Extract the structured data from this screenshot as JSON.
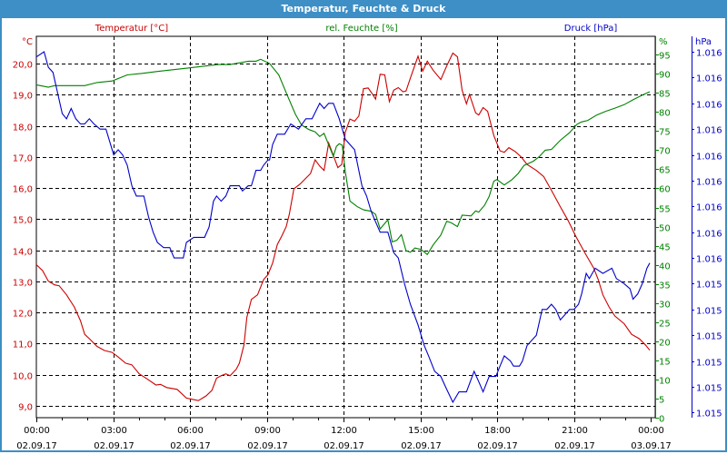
{
  "window": {
    "title": "Temperatur, Feuchte & Druck"
  },
  "colors": {
    "temperature": "#cc0000",
    "humidity": "#008000",
    "pressure": "#0000cc",
    "titlebar": "#3d8fc6"
  },
  "chart_data": {
    "type": "line",
    "title": "Temperatur, Feuchte & Druck",
    "x_unit": "hours since 02.09.17 00:00",
    "xlim": [
      0,
      24.17
    ],
    "x_ticks": [
      {
        "h": 0,
        "time": "00:00",
        "date": "02.09.17"
      },
      {
        "h": 3,
        "time": "03:00",
        "date": "02.09.17"
      },
      {
        "h": 6,
        "time": "06:00",
        "date": "02.09.17"
      },
      {
        "h": 9,
        "time": "09:00",
        "date": "02.09.17"
      },
      {
        "h": 12,
        "time": "12:00",
        "date": "02.09.17"
      },
      {
        "h": 15,
        "time": "15:00",
        "date": "02.09.17"
      },
      {
        "h": 18,
        "time": "18:00",
        "date": "02.09.17"
      },
      {
        "h": 21,
        "time": "21:00",
        "date": "02.09.17"
      },
      {
        "h": 24,
        "time": "00:00",
        "date": "03.09.17"
      }
    ],
    "grid": true,
    "axes": {
      "temperature": {
        "legend": "Temperatur [°C]",
        "unit": "°C",
        "ylim": [
          8.62,
          20.88
        ],
        "ticks": [
          9,
          10,
          11,
          12,
          13,
          14,
          15,
          16,
          17,
          18,
          19,
          20
        ],
        "tick_labels": [
          "9,0",
          "10,0",
          "11,0",
          "12,0",
          "13,0",
          "14,0",
          "15,0",
          "16,0",
          "17,0",
          "18,0",
          "19,0",
          "20,0"
        ]
      },
      "humidity": {
        "legend": "rel. Feuchte [%]",
        "unit": "%",
        "ylim": [
          0,
          99.8
        ],
        "ticks": [
          0,
          5,
          10,
          15,
          20,
          25,
          30,
          35,
          40,
          45,
          50,
          55,
          60,
          65,
          70,
          75,
          80,
          85,
          90,
          95
        ],
        "tick_labels": [
          "0",
          "5",
          "10",
          "15",
          "20",
          "25",
          "30",
          "35",
          "40",
          "45",
          "50",
          "55",
          "60",
          "65",
          "70",
          "75",
          "80",
          "85",
          "90",
          "95"
        ]
      },
      "pressure": {
        "legend": "Druck [hPa]",
        "unit": "hPa",
        "ylim": [
          1.01529,
          1.01603
        ],
        "ticks": [
          1.0153,
          1.01535,
          1.0154,
          1.01545,
          1.0155,
          1.01555,
          1.0156,
          1.01565,
          1.0157,
          1.01575,
          1.0158,
          1.01585,
          1.0159,
          1.01595,
          1.016
        ],
        "tick_labels": [
          "1.015",
          "1.015",
          "1.015",
          "1.015",
          "1.015",
          "1.015",
          "1.016",
          "1.016",
          "1.016",
          "1.016",
          "1.016",
          "1.016",
          "1.016",
          "1.016",
          "1.016"
        ]
      }
    },
    "series": [
      {
        "name": "Temperatur [°C]",
        "axis": "temperature",
        "x": [
          0,
          0.24,
          0.47,
          0.71,
          0.89,
          1.18,
          1.48,
          1.72,
          1.89,
          2.07,
          2.37,
          2.66,
          2.96,
          3.2,
          3.49,
          3.73,
          4.02,
          4.32,
          4.67,
          4.85,
          5.09,
          5.5,
          5.86,
          6.04,
          6.33,
          6.63,
          6.86,
          7.04,
          7.22,
          7.4,
          7.57,
          7.81,
          7.93,
          8.11,
          8.22,
          8.4,
          8.64,
          8.88,
          9.05,
          9.23,
          9.41,
          9.59,
          9.76,
          9.88,
          10.06,
          10.3,
          10.53,
          10.71,
          10.89,
          11.07,
          11.24,
          11.42,
          11.6,
          11.78,
          11.93,
          12.07,
          12.25,
          12.43,
          12.6,
          12.78,
          12.96,
          13.14,
          13.25,
          13.43,
          13.61,
          13.79,
          13.96,
          14.14,
          14.32,
          14.44,
          14.61,
          14.91,
          15.09,
          15.27,
          15.5,
          15.8,
          16.03,
          16.27,
          16.45,
          16.63,
          16.8,
          16.92,
          17.16,
          17.28,
          17.45,
          17.63,
          17.87,
          18.11,
          18.28,
          18.46,
          18.7,
          18.93,
          19.17,
          19.53,
          19.82,
          20.12,
          20.47,
          20.77,
          21.06,
          21.42,
          21.77,
          21.95,
          22.13,
          22.37,
          22.6,
          22.96,
          23.25,
          23.55,
          23.79,
          23.96
        ],
        "y": [
          13.54,
          13.35,
          13.01,
          12.89,
          12.86,
          12.57,
          12.18,
          11.74,
          11.3,
          11.16,
          10.91,
          10.78,
          10.72,
          10.57,
          10.37,
          10.32,
          10.03,
          9.87,
          9.67,
          9.69,
          9.59,
          9.53,
          9.25,
          9.22,
          9.17,
          9.32,
          9.5,
          9.89,
          9.97,
          10.03,
          9.97,
          10.18,
          10.37,
          10.96,
          11.84,
          12.42,
          12.57,
          13.06,
          13.22,
          13.59,
          14.18,
          14.47,
          14.76,
          15.15,
          15.98,
          16.13,
          16.32,
          16.47,
          16.91,
          16.71,
          16.57,
          17.45,
          17.05,
          16.66,
          16.76,
          17.8,
          18.22,
          18.15,
          18.32,
          19.2,
          19.22,
          19.01,
          18.86,
          19.66,
          19.64,
          18.78,
          19.15,
          19.23,
          19.1,
          19.12,
          19.54,
          20.24,
          19.76,
          20.08,
          19.79,
          19.49,
          19.93,
          20.34,
          20.22,
          19.15,
          18.71,
          19.01,
          18.42,
          18.35,
          18.59,
          18.47,
          17.69,
          17.2,
          17.15,
          17.3,
          17.18,
          17.01,
          16.76,
          16.57,
          16.37,
          15.93,
          15.4,
          14.96,
          14.47,
          13.93,
          13.43,
          13.06,
          12.57,
          12.18,
          11.89,
          11.64,
          11.3,
          11.16,
          10.96,
          10.79
        ]
      },
      {
        "name": "rel. Feuchte [%]",
        "axis": "humidity",
        "x": [
          0,
          0.47,
          0.71,
          1.89,
          2.37,
          2.96,
          3.55,
          4.14,
          4.73,
          5.92,
          7.1,
          7.57,
          8.28,
          8.58,
          8.76,
          9.11,
          9.47,
          9.82,
          10.12,
          10.36,
          10.65,
          10.89,
          11.07,
          11.24,
          11.42,
          11.6,
          11.72,
          11.83,
          11.95,
          12.07,
          12.25,
          12.54,
          12.78,
          13.08,
          13.25,
          13.43,
          13.73,
          13.9,
          14.08,
          14.26,
          14.44,
          14.61,
          14.79,
          15.03,
          15.27,
          15.5,
          15.8,
          16.03,
          16.21,
          16.45,
          16.63,
          16.86,
          16.98,
          17.16,
          17.28,
          17.51,
          17.69,
          17.87,
          17.99,
          18.28,
          18.58,
          18.82,
          19.05,
          19.41,
          19.64,
          19.88,
          20.12,
          20.47,
          20.83,
          21.12,
          21.3,
          21.54,
          21.89,
          22.25,
          22.6,
          22.96,
          23.31,
          23.67,
          23.96
        ],
        "y": [
          87.1,
          86.5,
          86.9,
          86.9,
          87.7,
          88.1,
          89.7,
          90.1,
          90.6,
          91.5,
          92.4,
          92.4,
          93.3,
          93.3,
          93.8,
          92.7,
          89.7,
          84.1,
          79.4,
          76.6,
          75.4,
          74.8,
          73.6,
          74.4,
          71.4,
          68.4,
          71.0,
          71.7,
          71.3,
          64.3,
          56.7,
          55.2,
          54.4,
          54.0,
          53.2,
          49.4,
          51.8,
          46.0,
          46.4,
          47.9,
          43.7,
          43.3,
          44.4,
          44.0,
          42.7,
          45.2,
          47.8,
          51.4,
          51.0,
          50.0,
          53.0,
          52.9,
          52.8,
          54.1,
          53.8,
          55.6,
          57.9,
          61.9,
          62.3,
          60.9,
          62.3,
          63.9,
          66.0,
          67.1,
          68.3,
          70.0,
          70.2,
          72.6,
          74.6,
          76.8,
          77.4,
          77.8,
          79.2,
          80.2,
          81.0,
          81.9,
          83.2,
          84.4,
          85.3
        ]
      },
      {
        "name": "Druck [hPa]",
        "axis": "pressure",
        "x": [
          0,
          0.3,
          0.47,
          0.65,
          0.83,
          1.01,
          1.18,
          1.36,
          1.54,
          1.72,
          1.89,
          2.07,
          2.25,
          2.49,
          2.72,
          3.02,
          3.2,
          3.37,
          3.55,
          3.73,
          3.91,
          4.08,
          4.2,
          4.38,
          4.56,
          4.73,
          4.97,
          5.21,
          5.38,
          5.74,
          5.86,
          6.15,
          6.39,
          6.57,
          6.75,
          6.92,
          7.04,
          7.22,
          7.4,
          7.57,
          7.81,
          7.93,
          8.05,
          8.28,
          8.4,
          8.58,
          8.76,
          8.88,
          9.05,
          9.11,
          9.23,
          9.41,
          9.59,
          9.7,
          9.94,
          10.24,
          10.53,
          10.77,
          11.07,
          11.24,
          11.42,
          11.6,
          11.83,
          12.07,
          12.43,
          12.72,
          12.9,
          13.08,
          13.25,
          13.43,
          13.61,
          13.73,
          13.96,
          14.14,
          14.38,
          14.61,
          14.91,
          15.15,
          15.32,
          15.56,
          15.8,
          15.98,
          16.27,
          16.51,
          16.8,
          17.1,
          17.28,
          17.45,
          17.69,
          17.81,
          17.95,
          18.11,
          18.28,
          18.52,
          18.64,
          18.87,
          18.99,
          19.17,
          19.35,
          19.53,
          19.76,
          19.94,
          20.12,
          20.29,
          20.47,
          20.65,
          20.83,
          21.0,
          21.18,
          21.3,
          21.48,
          21.6,
          21.83,
          22.13,
          22.48,
          22.66,
          22.96,
          23.19,
          23.31,
          23.49,
          23.67,
          23.85,
          23.96
        ],
        "y": [
          1.01599,
          1.016,
          1.01597,
          1.01596,
          1.01592,
          1.01588,
          1.01587,
          1.01589,
          1.01587,
          1.01586,
          1.01586,
          1.01587,
          1.01586,
          1.01585,
          1.01585,
          1.0158,
          1.01581,
          1.0158,
          1.01578,
          1.01574,
          1.01572,
          1.01572,
          1.01572,
          1.01568,
          1.01565,
          1.01563,
          1.01562,
          1.01562,
          1.0156,
          1.0156,
          1.01563,
          1.01564,
          1.01564,
          1.01564,
          1.01566,
          1.01571,
          1.01572,
          1.01571,
          1.01572,
          1.01574,
          1.01574,
          1.01574,
          1.01573,
          1.01574,
          1.01574,
          1.01577,
          1.01577,
          1.01578,
          1.01579,
          1.01579,
          1.01582,
          1.01584,
          1.01584,
          1.01584,
          1.01586,
          1.01585,
          1.01587,
          1.01587,
          1.0159,
          1.01589,
          1.0159,
          1.0159,
          1.01587,
          1.01583,
          1.01581,
          1.01574,
          1.01572,
          1.01569,
          1.01567,
          1.01565,
          1.01565,
          1.01565,
          1.01561,
          1.0156,
          1.01555,
          1.01551,
          1.01547,
          1.01543,
          1.01541,
          1.01538,
          1.01537,
          1.01535,
          1.01532,
          1.01534,
          1.01534,
          1.01538,
          1.01536,
          1.01534,
          1.01537,
          1.01537,
          1.01537,
          1.01539,
          1.01541,
          1.0154,
          1.01539,
          1.01539,
          1.0154,
          1.01543,
          1.01544,
          1.01545,
          1.0155,
          1.0155,
          1.01551,
          1.0155,
          1.01548,
          1.01549,
          1.0155,
          1.0155,
          1.01551,
          1.01553,
          1.01557,
          1.01556,
          1.01558,
          1.01557,
          1.01558,
          1.01556,
          1.01555,
          1.01554,
          1.01552,
          1.01553,
          1.01555,
          1.01558,
          1.01559
        ]
      }
    ]
  }
}
